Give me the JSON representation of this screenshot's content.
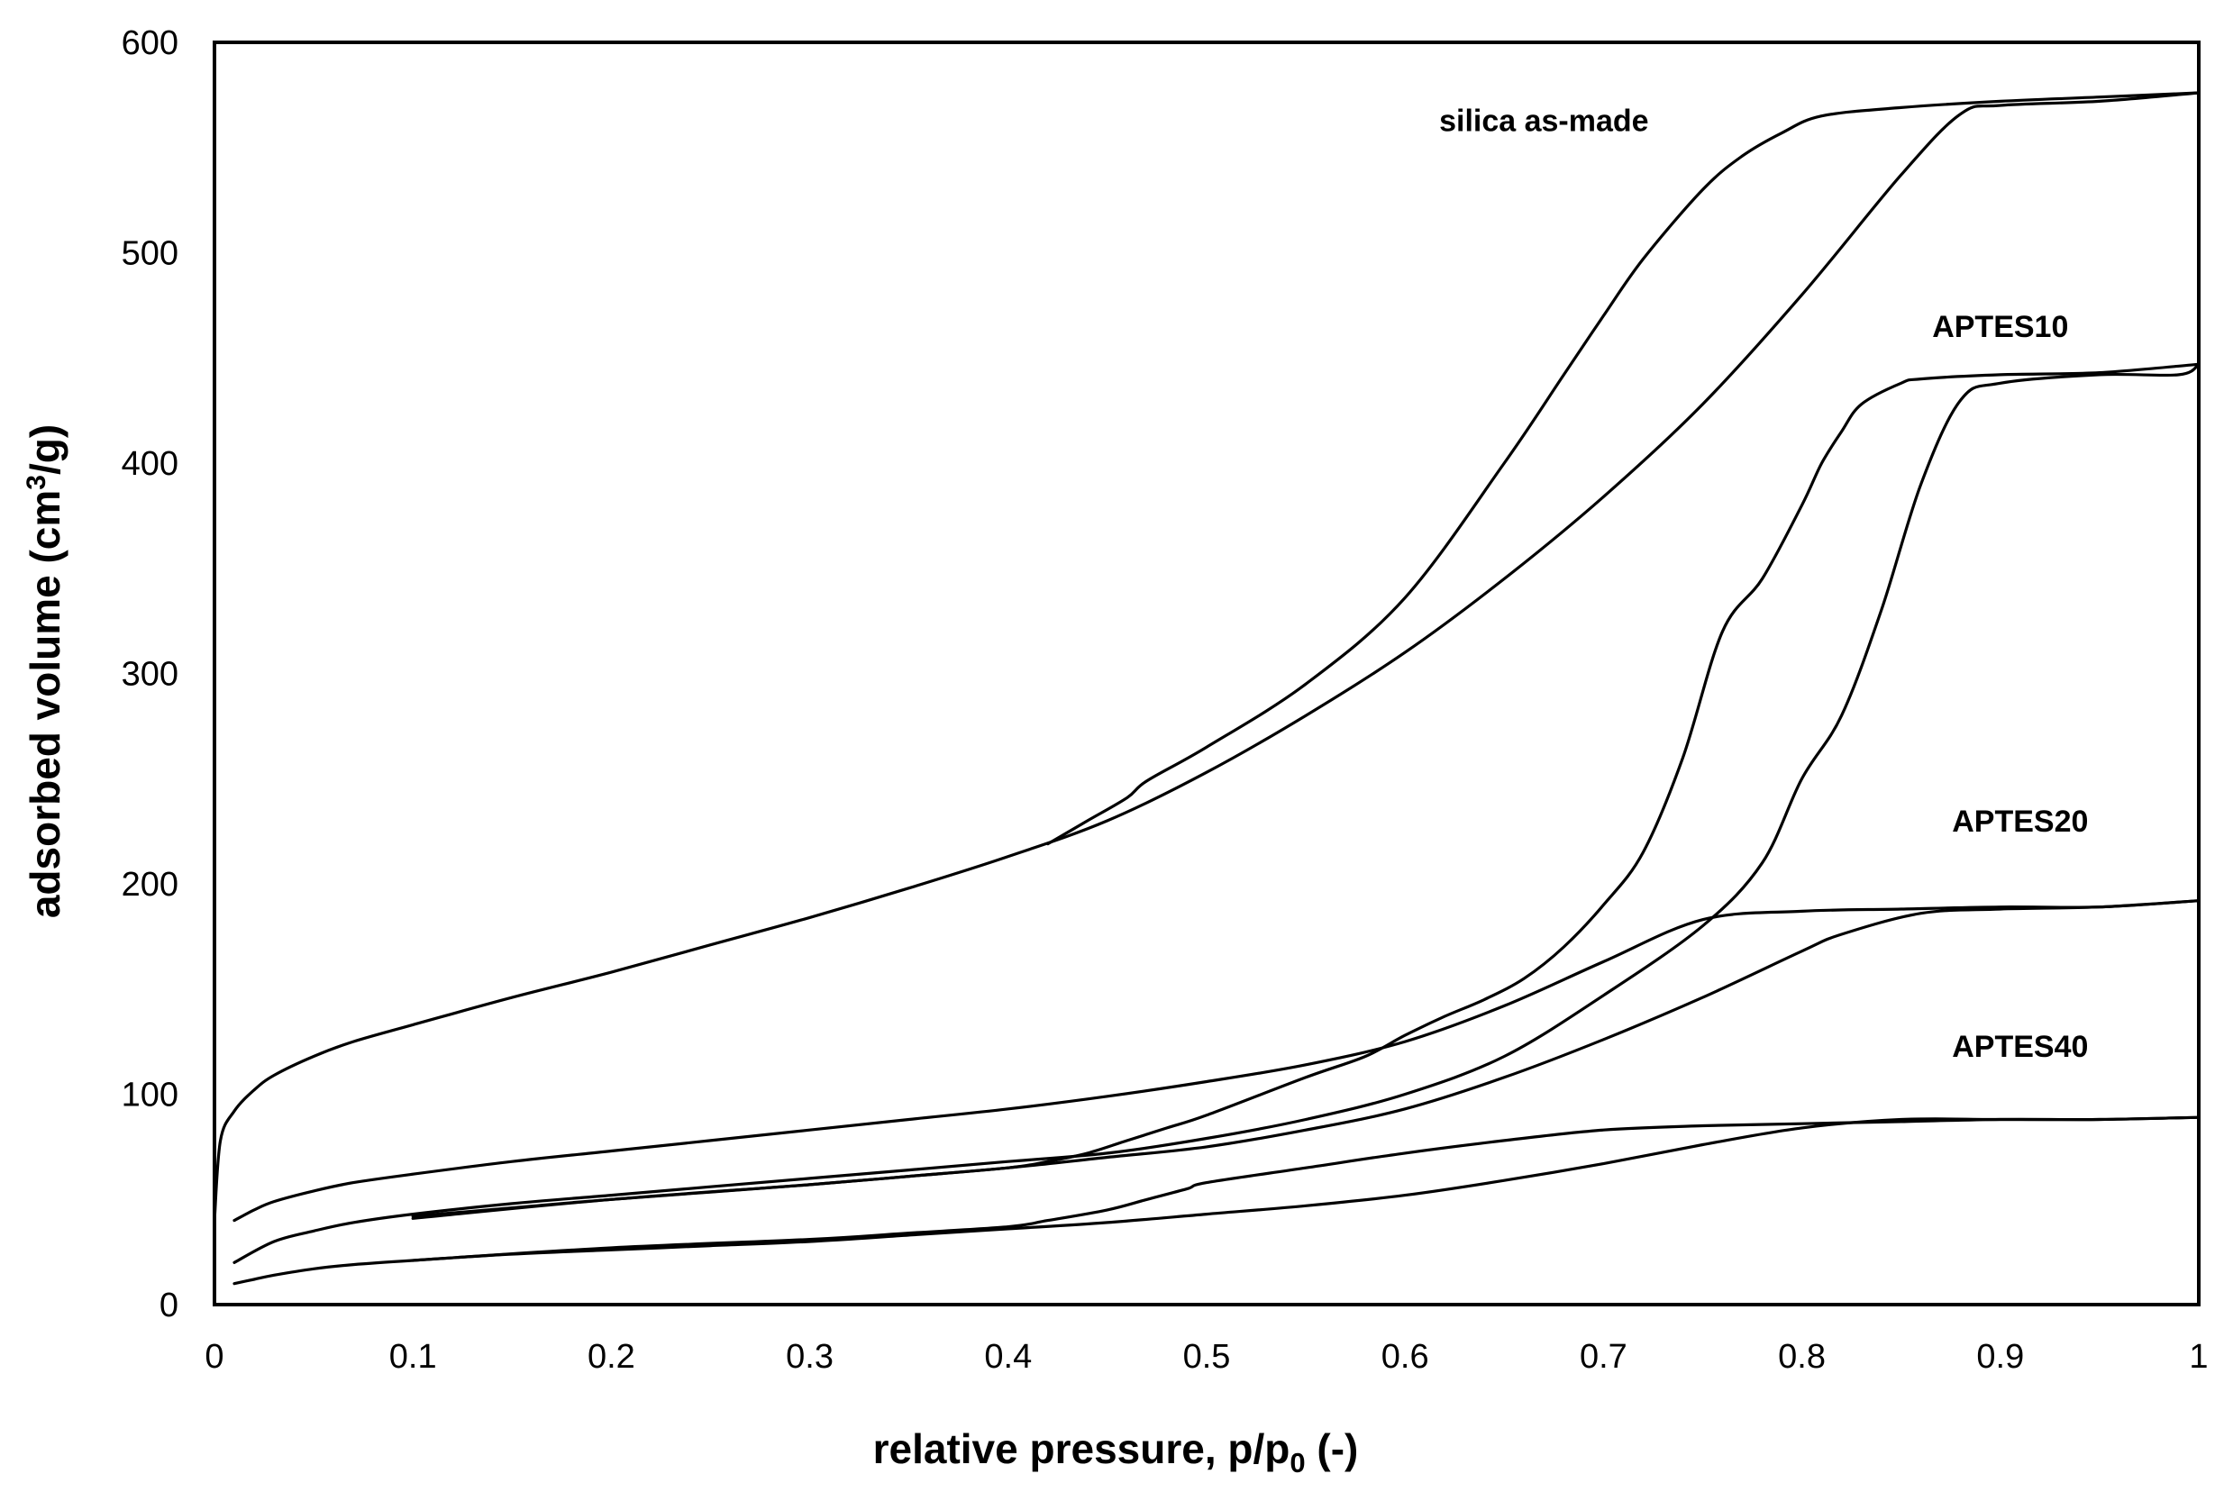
{
  "chart_data": {
    "type": "line",
    "title": "",
    "xlabel": {
      "main": "relative pressure, p/p",
      "sub": "0",
      "tail": " (-)"
    },
    "ylabel": {
      "main": "adsorbed volume (cm",
      "sup": "3",
      "tail": "/g)"
    },
    "xlim": [
      0,
      1
    ],
    "ylim": [
      0,
      600
    ],
    "x_ticks": [
      "0",
      "0.1",
      "0.2",
      "0.3",
      "0.4",
      "0.5",
      "0.6",
      "0.7",
      "0.8",
      "0.9",
      "1"
    ],
    "y_ticks": [
      "0",
      "100",
      "200",
      "300",
      "400",
      "500",
      "600"
    ],
    "grid": false,
    "annotations": [
      {
        "text": "silica as-made",
        "x": 0.67,
        "y": 563
      },
      {
        "text": "APTES10",
        "x": 0.9,
        "y": 465
      },
      {
        "text": "APTES20",
        "x": 0.91,
        "y": 230
      },
      {
        "text": "APTES40",
        "x": 0.91,
        "y": 123
      }
    ],
    "series": [
      {
        "name": "silica as-made adsorption",
        "x": [
          0,
          0.003,
          0.01,
          0.02,
          0.03,
          0.05,
          0.07,
          0.1,
          0.15,
          0.2,
          0.25,
          0.3,
          0.35,
          0.4,
          0.45,
          0.5,
          0.55,
          0.6,
          0.65,
          0.7,
          0.75,
          0.8,
          0.85,
          0.88,
          0.9,
          0.95,
          1.0
        ],
        "y": [
          40,
          78,
          92,
          102,
          109,
          118,
          125,
          133,
          146,
          158,
          171,
          184,
          198,
          213,
          230,
          253,
          280,
          310,
          345,
          384,
          428,
          480,
          537,
          566,
          570,
          572,
          576
        ]
      },
      {
        "name": "silica as-made desorption",
        "x": [
          1.0,
          0.95,
          0.9,
          0.85,
          0.81,
          0.79,
          0.77,
          0.75,
          0.72,
          0.7,
          0.68,
          0.65,
          0.6,
          0.55,
          0.5,
          0.47,
          0.46,
          0.44,
          0.42
        ],
        "y": [
          576,
          574,
          572,
          569,
          565,
          557,
          546,
          530,
          497,
          470,
          442,
          400,
          336,
          295,
          265,
          249,
          241,
          230,
          219
        ]
      },
      {
        "name": "APTES10 adsorption",
        "x": [
          0.01,
          0.03,
          0.05,
          0.07,
          0.1,
          0.15,
          0.2,
          0.25,
          0.3,
          0.35,
          0.4,
          0.45,
          0.5,
          0.55,
          0.6,
          0.65,
          0.7,
          0.75,
          0.78,
          0.8,
          0.82,
          0.84,
          0.86,
          0.88,
          0.9,
          0.95,
          0.99,
          1.0
        ],
        "y": [
          20,
          30,
          35,
          39,
          43,
          48,
          52,
          56,
          60,
          64,
          68,
          72,
          79,
          88,
          100,
          118,
          147,
          180,
          210,
          250,
          280,
          330,
          390,
          430,
          438,
          442,
          442,
          447
        ]
      },
      {
        "name": "APTES10 desorption",
        "x": [
          1.0,
          0.95,
          0.9,
          0.86,
          0.85,
          0.83,
          0.82,
          0.81,
          0.8,
          0.78,
          0.76,
          0.74,
          0.72,
          0.7,
          0.68,
          0.66,
          0.64,
          0.62,
          0.6,
          0.58,
          0.55,
          0.5,
          0.48,
          0.46,
          0.44,
          0.42,
          0.4,
          0.35,
          0.3,
          0.2,
          0.15,
          0.1
        ],
        "y": [
          447,
          443,
          442,
          440,
          438,
          428,
          415,
          400,
          380,
          345,
          320,
          260,
          215,
          190,
          170,
          155,
          145,
          137,
          128,
          118,
          108,
          90,
          84,
          78,
          72,
          68,
          65,
          61,
          57,
          50,
          46,
          42
        ]
      },
      {
        "name": "APTES20 adsorption",
        "x": [
          0.01,
          0.02,
          0.03,
          0.05,
          0.07,
          0.1,
          0.15,
          0.2,
          0.25,
          0.3,
          0.35,
          0.4,
          0.45,
          0.5,
          0.55,
          0.6,
          0.65,
          0.7,
          0.75,
          0.8,
          0.85,
          0.9,
          0.95,
          1.0
        ],
        "y": [
          40,
          45,
          49,
          54,
          58,
          62,
          68,
          73,
          78,
          83,
          88,
          93,
          99,
          106,
          114,
          125,
          142,
          163,
          183,
          187,
          188,
          189,
          189,
          192
        ]
      },
      {
        "name": "APTES20 desorption",
        "x": [
          1.0,
          0.95,
          0.9,
          0.86,
          0.82,
          0.8,
          0.75,
          0.7,
          0.65,
          0.6,
          0.55,
          0.5,
          0.45,
          0.4,
          0.35,
          0.3,
          0.2,
          0.1
        ],
        "y": [
          192,
          189,
          188,
          186,
          176,
          168,
          146,
          126,
          108,
          93,
          83,
          75,
          70,
          65,
          61,
          57,
          50,
          41
        ]
      },
      {
        "name": "APTES40 adsorption",
        "x": [
          0.01,
          0.02,
          0.03,
          0.05,
          0.07,
          0.1,
          0.15,
          0.2,
          0.25,
          0.3,
          0.35,
          0.4,
          0.45,
          0.5,
          0.55,
          0.6,
          0.65,
          0.7,
          0.75,
          0.8,
          0.85,
          0.9,
          0.95,
          1.0
        ],
        "y": [
          10,
          12,
          14,
          17,
          19,
          21,
          24,
          26,
          28,
          30,
          33,
          36,
          39,
          43,
          47,
          52,
          59,
          67,
          76,
          84,
          88,
          88,
          88,
          89
        ]
      },
      {
        "name": "APTES40 desorption",
        "x": [
          1.0,
          0.95,
          0.9,
          0.85,
          0.8,
          0.75,
          0.7,
          0.65,
          0.6,
          0.55,
          0.5,
          0.49,
          0.47,
          0.45,
          0.42,
          0.4,
          0.35,
          0.3,
          0.2,
          0.1
        ],
        "y": [
          89,
          88,
          88,
          87,
          86,
          85,
          83,
          78,
          72,
          65,
          58,
          55,
          50,
          45,
          40,
          37,
          34,
          31,
          27,
          21
        ]
      }
    ]
  }
}
